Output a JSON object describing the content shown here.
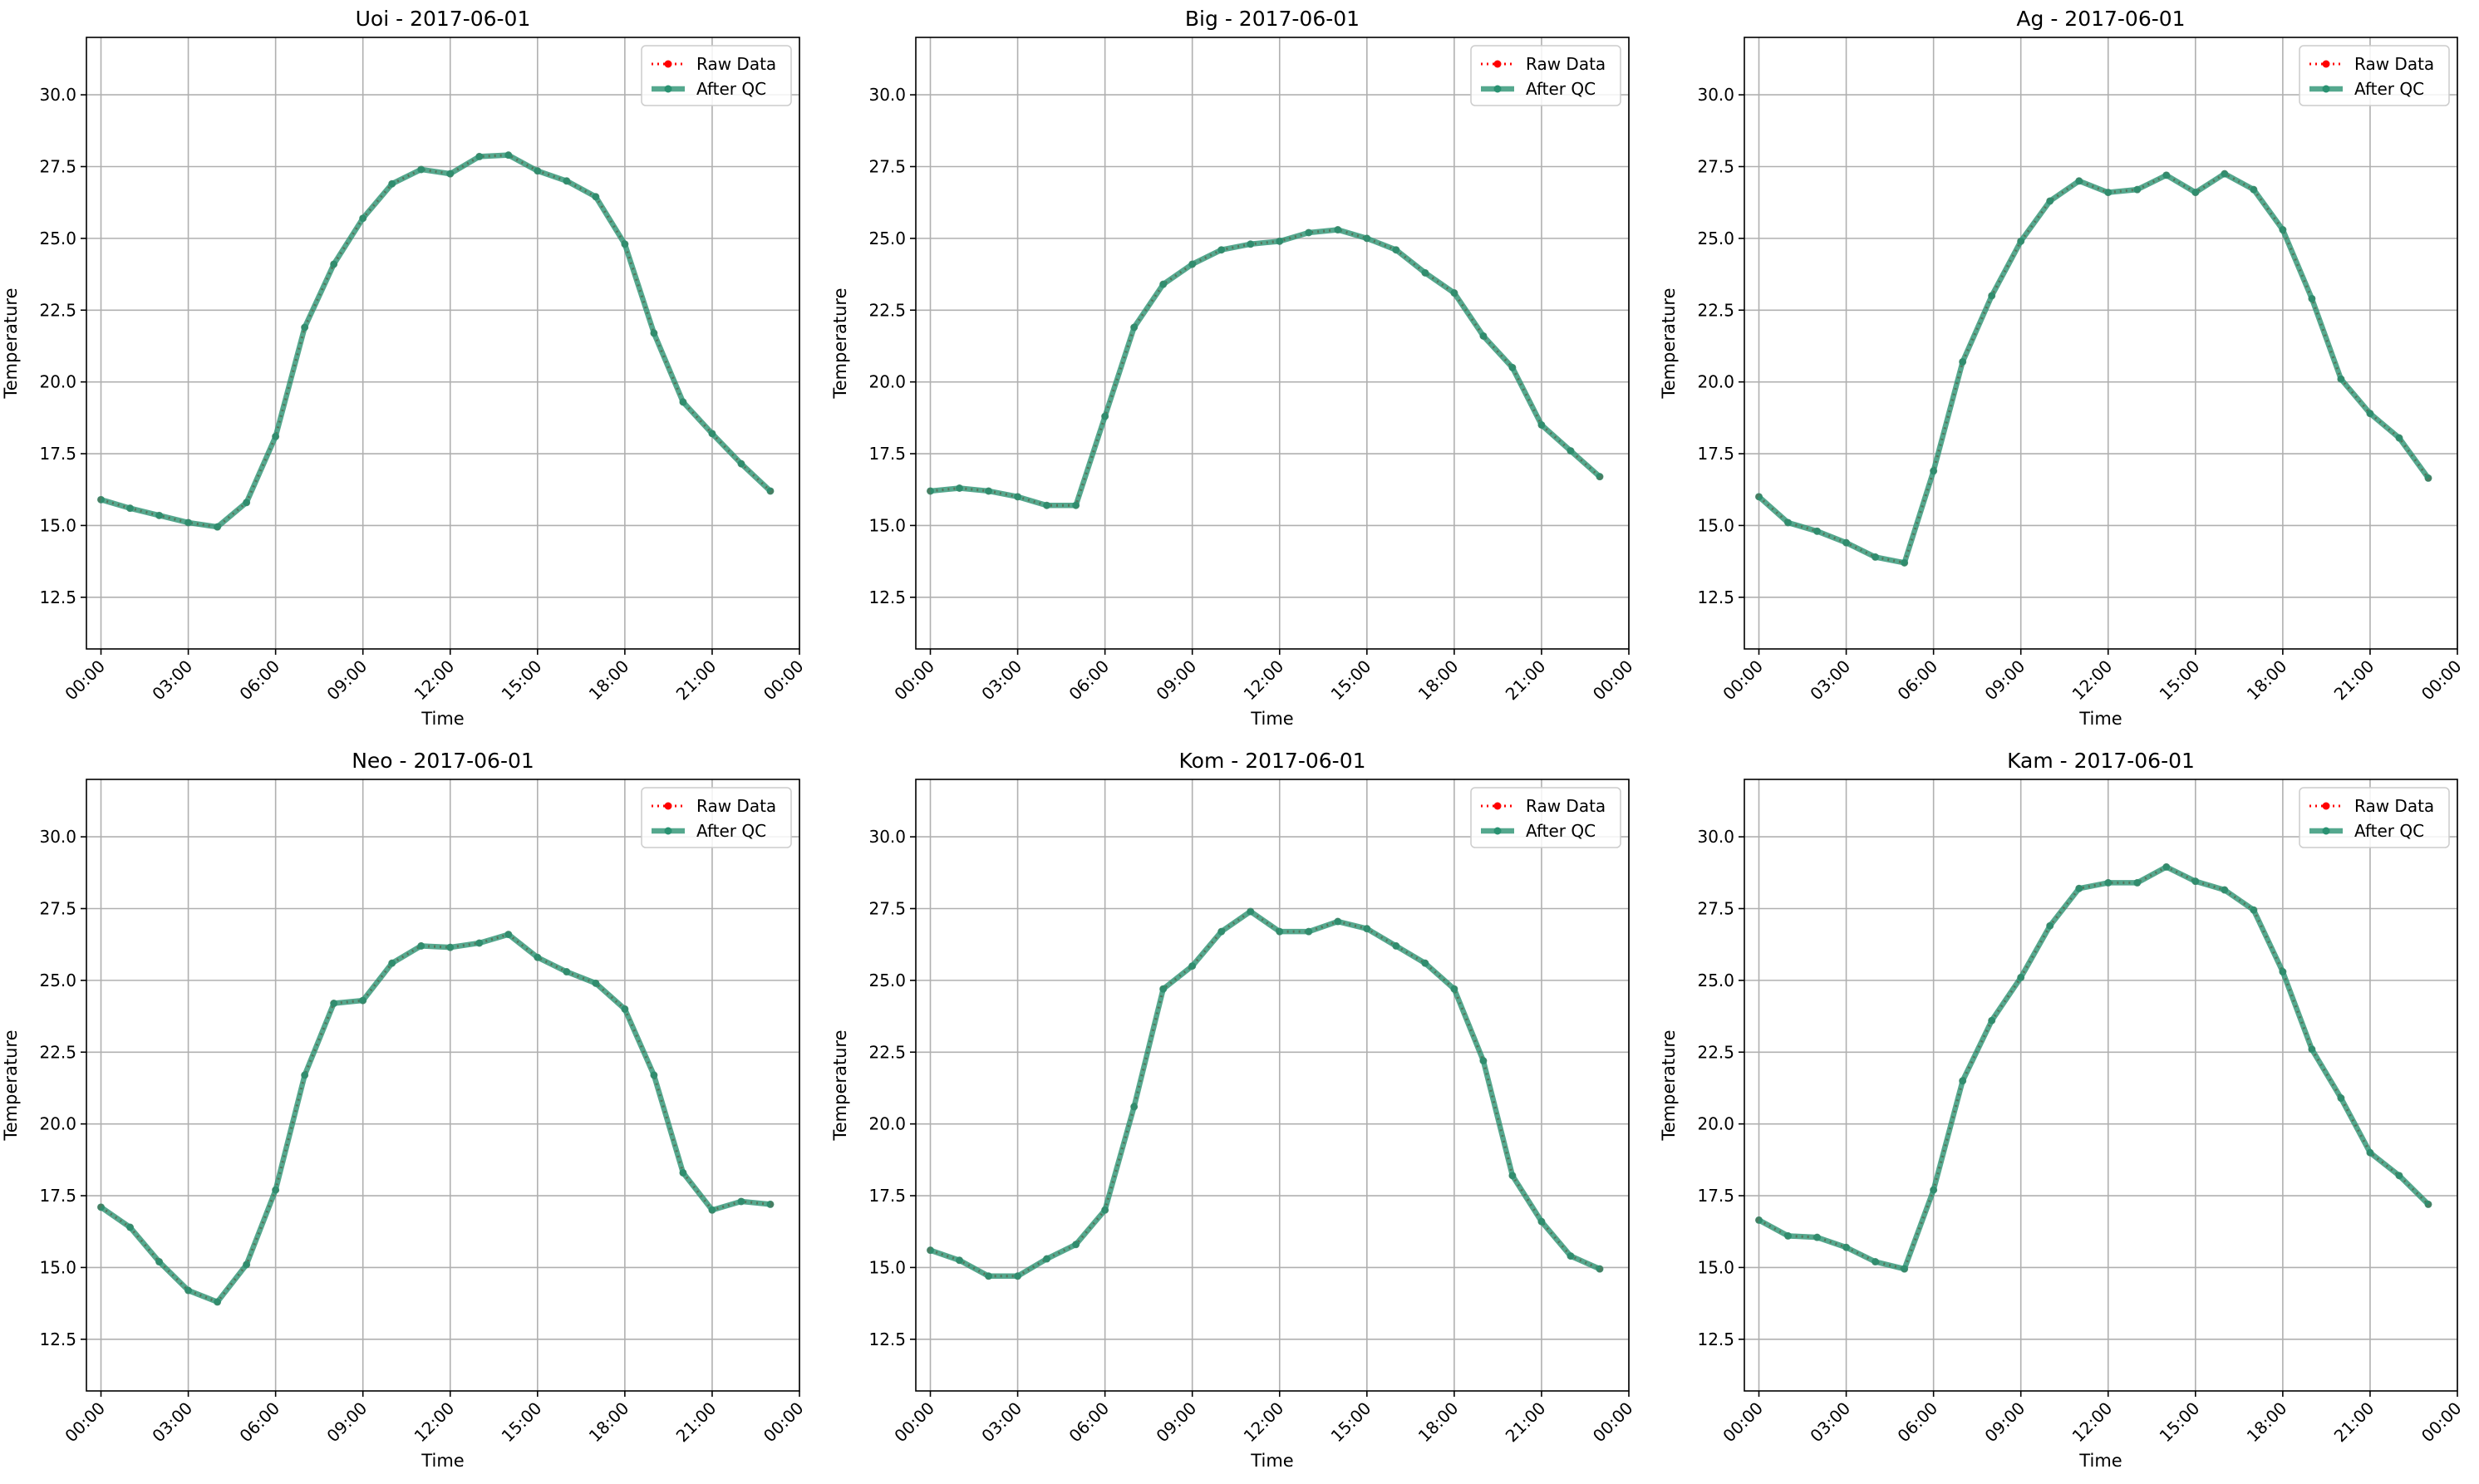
{
  "figure": {
    "background": "#ffffff"
  },
  "colors": {
    "raw": "#ff0000",
    "after_qc": "#2a9272",
    "grid": "#b0b0b0",
    "axis": "#000000",
    "legend_border": "#cccccc"
  },
  "legend": {
    "raw_label": "Raw Data",
    "qc_label": "After QC",
    "placement": "upper right"
  },
  "chart_data": [
    {
      "type": "line",
      "title": "Uoi - 2017-06-01",
      "xlabel": "Time",
      "ylabel": "Temperature",
      "x_hours": [
        0,
        1,
        2,
        3,
        4,
        5,
        6,
        7,
        8,
        9,
        10,
        11,
        12,
        13,
        14,
        15,
        16,
        17,
        18,
        19,
        20,
        21,
        22,
        23
      ],
      "xlim": [
        -0.5,
        24
      ],
      "ylim": [
        10.7,
        32.0
      ],
      "yticks": [
        12.5,
        15.0,
        17.5,
        20.0,
        22.5,
        25.0,
        27.5,
        30.0
      ],
      "xticks": [
        "00:00",
        "03:00",
        "06:00",
        "09:00",
        "12:00",
        "15:00",
        "18:00",
        "21:00",
        "00:00"
      ],
      "grid": true,
      "series": [
        {
          "name": "Raw Data",
          "values": [
            15.9,
            15.6,
            15.35,
            15.1,
            14.95,
            15.8,
            18.1,
            21.9,
            24.1,
            25.7,
            26.9,
            27.4,
            27.25,
            27.85,
            27.9,
            27.35,
            27.0,
            26.45,
            24.8,
            21.7,
            19.3,
            18.2,
            17.15,
            16.2
          ]
        },
        {
          "name": "After QC",
          "values": [
            15.9,
            15.6,
            15.35,
            15.1,
            14.95,
            15.8,
            18.1,
            21.9,
            24.1,
            25.7,
            26.9,
            27.4,
            27.25,
            27.85,
            27.9,
            27.35,
            27.0,
            26.45,
            24.8,
            21.7,
            19.3,
            18.2,
            17.15,
            16.2
          ]
        }
      ]
    },
    {
      "type": "line",
      "title": "Big - 2017-06-01",
      "xlabel": "Time",
      "ylabel": "Temperature",
      "x_hours": [
        0,
        1,
        2,
        3,
        4,
        5,
        6,
        7,
        8,
        9,
        10,
        11,
        12,
        13,
        14,
        15,
        16,
        17,
        18,
        19,
        20,
        21,
        22,
        23
      ],
      "xlim": [
        -0.5,
        24
      ],
      "ylim": [
        10.7,
        32.0
      ],
      "yticks": [
        12.5,
        15.0,
        17.5,
        20.0,
        22.5,
        25.0,
        27.5,
        30.0
      ],
      "xticks": [
        "00:00",
        "03:00",
        "06:00",
        "09:00",
        "12:00",
        "15:00",
        "18:00",
        "21:00",
        "00:00"
      ],
      "grid": true,
      "series": [
        {
          "name": "Raw Data",
          "values": [
            16.2,
            16.3,
            16.2,
            16.0,
            15.7,
            15.7,
            18.8,
            21.9,
            23.4,
            24.1,
            24.6,
            24.8,
            24.9,
            25.2,
            25.3,
            25.0,
            24.6,
            23.8,
            23.1,
            21.6,
            20.5,
            18.5,
            17.6,
            16.7
          ]
        },
        {
          "name": "After QC",
          "values": [
            16.2,
            16.3,
            16.2,
            16.0,
            15.7,
            15.7,
            18.8,
            21.9,
            23.4,
            24.1,
            24.6,
            24.8,
            24.9,
            25.2,
            25.3,
            25.0,
            24.6,
            23.8,
            23.1,
            21.6,
            20.5,
            18.5,
            17.6,
            16.7
          ]
        }
      ]
    },
    {
      "type": "line",
      "title": "Ag - 2017-06-01",
      "xlabel": "Time",
      "ylabel": "Temperature",
      "x_hours": [
        0,
        1,
        2,
        3,
        4,
        5,
        6,
        7,
        8,
        9,
        10,
        11,
        12,
        13,
        14,
        15,
        16,
        17,
        18,
        19,
        20,
        21,
        22,
        23
      ],
      "xlim": [
        -0.5,
        24
      ],
      "ylim": [
        10.7,
        32.0
      ],
      "yticks": [
        12.5,
        15.0,
        17.5,
        20.0,
        22.5,
        25.0,
        27.5,
        30.0
      ],
      "xticks": [
        "00:00",
        "03:00",
        "06:00",
        "09:00",
        "12:00",
        "15:00",
        "18:00",
        "21:00",
        "00:00"
      ],
      "grid": true,
      "series": [
        {
          "name": "Raw Data",
          "values": [
            16.0,
            15.1,
            14.8,
            14.4,
            13.9,
            13.7,
            16.9,
            20.7,
            23.0,
            24.9,
            26.3,
            27.0,
            26.6,
            26.7,
            27.2,
            26.6,
            27.25,
            26.7,
            25.3,
            22.9,
            20.1,
            18.9,
            18.05,
            16.65
          ]
        },
        {
          "name": "After QC",
          "values": [
            16.0,
            15.1,
            14.8,
            14.4,
            13.9,
            13.7,
            16.9,
            20.7,
            23.0,
            24.9,
            26.3,
            27.0,
            26.6,
            26.7,
            27.2,
            26.6,
            27.25,
            26.7,
            25.3,
            22.9,
            20.1,
            18.9,
            18.05,
            16.65
          ]
        }
      ]
    },
    {
      "type": "line",
      "title": "Neo - 2017-06-01",
      "xlabel": "Time",
      "ylabel": "Temperature",
      "x_hours": [
        0,
        1,
        2,
        3,
        4,
        5,
        6,
        7,
        8,
        9,
        10,
        11,
        12,
        13,
        14,
        15,
        16,
        17,
        18,
        19,
        20,
        21,
        22,
        23
      ],
      "xlim": [
        -0.5,
        24
      ],
      "ylim": [
        10.7,
        32.0
      ],
      "yticks": [
        12.5,
        15.0,
        17.5,
        20.0,
        22.5,
        25.0,
        27.5,
        30.0
      ],
      "xticks": [
        "00:00",
        "03:00",
        "06:00",
        "09:00",
        "12:00",
        "15:00",
        "18:00",
        "21:00",
        "00:00"
      ],
      "grid": true,
      "series": [
        {
          "name": "Raw Data",
          "values": [
            17.1,
            16.4,
            15.2,
            14.2,
            13.8,
            15.1,
            17.7,
            21.7,
            24.2,
            24.3,
            25.6,
            26.2,
            26.15,
            26.3,
            26.6,
            25.8,
            25.3,
            24.9,
            24.0,
            21.7,
            18.3,
            17.0,
            17.3,
            17.2
          ]
        },
        {
          "name": "After QC",
          "values": [
            17.1,
            16.4,
            15.2,
            14.2,
            13.8,
            15.1,
            17.7,
            21.7,
            24.2,
            24.3,
            25.6,
            26.2,
            26.15,
            26.3,
            26.6,
            25.8,
            25.3,
            24.9,
            24.0,
            21.7,
            18.3,
            17.0,
            17.3,
            17.2
          ]
        }
      ]
    },
    {
      "type": "line",
      "title": "Kom - 2017-06-01",
      "xlabel": "Time",
      "ylabel": "Temperature",
      "x_hours": [
        0,
        1,
        2,
        3,
        4,
        5,
        6,
        7,
        8,
        9,
        10,
        11,
        12,
        13,
        14,
        15,
        16,
        17,
        18,
        19,
        20,
        21,
        22,
        23
      ],
      "xlim": [
        -0.5,
        24
      ],
      "ylim": [
        10.7,
        32.0
      ],
      "yticks": [
        12.5,
        15.0,
        17.5,
        20.0,
        22.5,
        25.0,
        27.5,
        30.0
      ],
      "xticks": [
        "00:00",
        "03:00",
        "06:00",
        "09:00",
        "12:00",
        "15:00",
        "18:00",
        "21:00",
        "00:00"
      ],
      "grid": true,
      "series": [
        {
          "name": "Raw Data",
          "values": [
            15.6,
            15.25,
            14.7,
            14.7,
            15.3,
            15.8,
            17.0,
            20.6,
            24.7,
            25.5,
            26.7,
            27.4,
            26.7,
            26.7,
            27.05,
            26.8,
            26.2,
            25.6,
            24.7,
            22.2,
            18.2,
            16.6,
            15.4,
            14.95
          ]
        },
        {
          "name": "After QC",
          "values": [
            15.6,
            15.25,
            14.7,
            14.7,
            15.3,
            15.8,
            17.0,
            20.6,
            24.7,
            25.5,
            26.7,
            27.4,
            26.7,
            26.7,
            27.05,
            26.8,
            26.2,
            25.6,
            24.7,
            22.2,
            18.2,
            16.6,
            15.4,
            14.95
          ]
        }
      ]
    },
    {
      "type": "line",
      "title": "Kam - 2017-06-01",
      "xlabel": "Time",
      "ylabel": "Temperature",
      "x_hours": [
        0,
        1,
        2,
        3,
        4,
        5,
        6,
        7,
        8,
        9,
        10,
        11,
        12,
        13,
        14,
        15,
        16,
        17,
        18,
        19,
        20,
        21,
        22,
        23
      ],
      "xlim": [
        -0.5,
        24
      ],
      "ylim": [
        10.7,
        32.0
      ],
      "yticks": [
        12.5,
        15.0,
        17.5,
        20.0,
        22.5,
        25.0,
        27.5,
        30.0
      ],
      "xticks": [
        "00:00",
        "03:00",
        "06:00",
        "09:00",
        "12:00",
        "15:00",
        "18:00",
        "21:00",
        "00:00"
      ],
      "grid": true,
      "series": [
        {
          "name": "Raw Data",
          "values": [
            16.65,
            16.1,
            16.05,
            15.7,
            15.2,
            14.95,
            17.7,
            21.5,
            23.6,
            25.1,
            26.9,
            28.2,
            28.4,
            28.4,
            28.95,
            28.45,
            28.15,
            27.45,
            25.3,
            22.6,
            20.9,
            19.0,
            18.2,
            17.2
          ]
        },
        {
          "name": "After QC",
          "values": [
            16.65,
            16.1,
            16.05,
            15.7,
            15.2,
            14.95,
            17.7,
            21.5,
            23.6,
            25.1,
            26.9,
            28.2,
            28.4,
            28.4,
            28.95,
            28.45,
            28.15,
            27.45,
            25.3,
            22.6,
            20.9,
            19.0,
            18.2,
            17.2
          ]
        }
      ]
    }
  ]
}
